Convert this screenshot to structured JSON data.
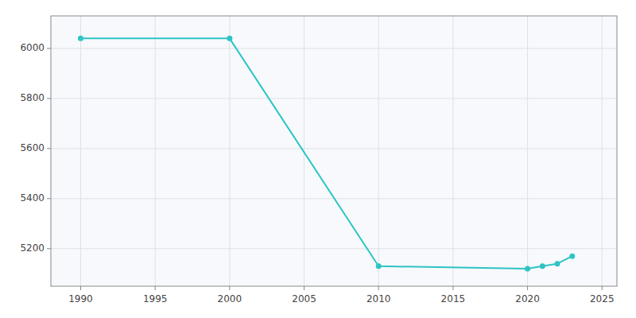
{
  "chart_data": {
    "type": "line",
    "x": [
      1990,
      2000,
      2010,
      2020,
      2021,
      2022,
      2023
    ],
    "values": [
      6040,
      6040,
      5130,
      5120,
      5130,
      5140,
      5170
    ],
    "color": "#2EC4C4",
    "marker": "circle",
    "xlim": [
      1988,
      2026
    ],
    "ylim": [
      5050,
      6130
    ],
    "xticks": [
      1990,
      1995,
      2000,
      2005,
      2010,
      2015,
      2020,
      2025
    ],
    "yticks": [
      5200,
      5400,
      5600,
      5800,
      6000
    ],
    "grid": true
  }
}
